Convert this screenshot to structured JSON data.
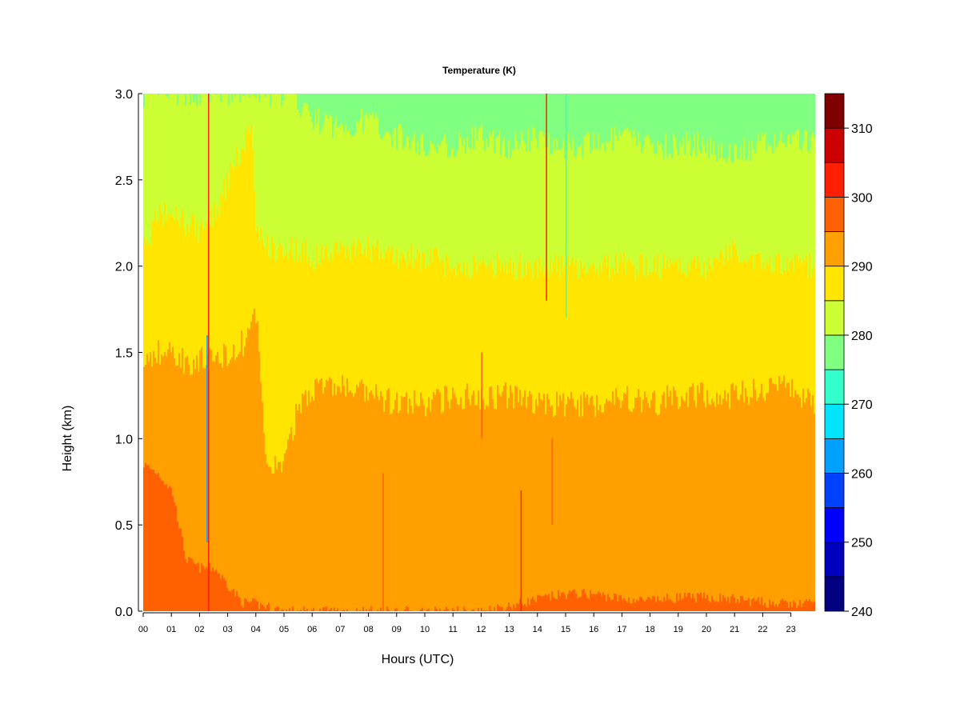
{
  "chart_data": {
    "type": "heatmap",
    "title": "Temperature (K)",
    "xlabel": "Hours (UTC)",
    "ylabel": "Height (km)",
    "xlim": [
      0,
      23.86
    ],
    "ylim": [
      0,
      3.0
    ],
    "x_ticks": [
      "00",
      "01",
      "02",
      "03",
      "04",
      "05",
      "06",
      "07",
      "08",
      "09",
      "10",
      "11",
      "12",
      "13",
      "14",
      "15",
      "16",
      "17",
      "18",
      "19",
      "20",
      "21",
      "22",
      "23"
    ],
    "y_ticks": [
      "0.0",
      "0.5",
      "1.0",
      "1.5",
      "2.0",
      "2.5",
      "3.0"
    ],
    "colorbar": {
      "range": [
        240,
        315
      ],
      "step": 5,
      "tick_labels": [
        "240",
        "250",
        "260",
        "270",
        "280",
        "290",
        "300",
        "310"
      ],
      "colors": [
        "#000080",
        "#0000BF",
        "#0000FF",
        "#0040FF",
        "#00A0FF",
        "#00E5FF",
        "#33FFCC",
        "#80FF80",
        "#CCFF33",
        "#FFE500",
        "#FFA000",
        "#FF6000",
        "#FF2000",
        "#CC0000",
        "#800000"
      ]
    },
    "hours": [
      0,
      0.5,
      1,
      1.5,
      2,
      2.5,
      3,
      3.5,
      3.8,
      4,
      4.3,
      4.5,
      5,
      5.5,
      6,
      7,
      8,
      9,
      10,
      11,
      12,
      12.5,
      13,
      14,
      15,
      16,
      17,
      18,
      19,
      20,
      21,
      22,
      23,
      24
    ],
    "band_tops_km": {
      "comment_classes": "top height of each temperature class band, lowest first",
      "295-300": [
        0.85,
        0.8,
        0.7,
        0.3,
        0.25,
        0.25,
        0.15,
        0.05,
        0.05,
        0.04,
        0.03,
        0.02,
        0,
        0,
        0,
        0,
        0,
        0,
        0,
        0,
        0,
        0.02,
        0.03,
        0.07,
        0.1,
        0.1,
        0.07,
        0.06,
        0.08,
        0.08,
        0.07,
        0.05,
        0.04,
        0.05
      ],
      "290-295": [
        1.45,
        1.5,
        1.5,
        1.45,
        1.45,
        1.45,
        1.5,
        1.55,
        1.65,
        1.7,
        0.9,
        0.85,
        0.85,
        1.2,
        1.3,
        1.3,
        1.25,
        1.2,
        1.2,
        1.25,
        1.25,
        1.25,
        1.25,
        1.2,
        1.2,
        1.2,
        1.25,
        1.2,
        1.25,
        1.25,
        1.25,
        1.3,
        1.3,
        1.15
      ],
      "285-290": [
        2.1,
        2.3,
        2.3,
        2.25,
        2.2,
        2.3,
        2.5,
        2.7,
        2.8,
        2.2,
        2.15,
        2.1,
        2.1,
        2.1,
        2.05,
        2.1,
        2.1,
        2.05,
        2.05,
        2.0,
        2.0,
        2.0,
        2.0,
        2.0,
        2.0,
        2.0,
        2.0,
        2.0,
        2.0,
        2.0,
        2.1,
        2.0,
        2.0,
        2.0
      ],
      "280-285": [
        3.0,
        3.0,
        3.0,
        3.0,
        3.0,
        3.0,
        3.0,
        3.0,
        3.0,
        3.0,
        3.0,
        3.0,
        3.0,
        2.95,
        2.85,
        2.8,
        2.85,
        2.75,
        2.7,
        2.7,
        2.75,
        2.72,
        2.7,
        2.75,
        2.7,
        2.7,
        2.75,
        2.7,
        2.7,
        2.7,
        2.65,
        2.7,
        2.75,
        2.7
      ],
      "275-280": [
        3.0,
        3.0,
        3.0,
        3.0,
        3.0,
        3.0,
        3.0,
        3.0,
        3.0,
        3.0,
        3.0,
        3.0,
        3.0,
        3.0,
        3.0,
        3.0,
        3.0,
        3.0,
        3.0,
        3.0,
        3.0,
        3.0,
        3.0,
        3.0,
        3.0,
        3.0,
        3.0,
        3.0,
        3.0,
        3.0,
        3.0,
        3.0,
        3.0,
        3.0
      ]
    },
    "band_colors": [
      "#FF6000",
      "#FFA000",
      "#FFE500",
      "#CCFF33",
      "#80FF80"
    ]
  }
}
